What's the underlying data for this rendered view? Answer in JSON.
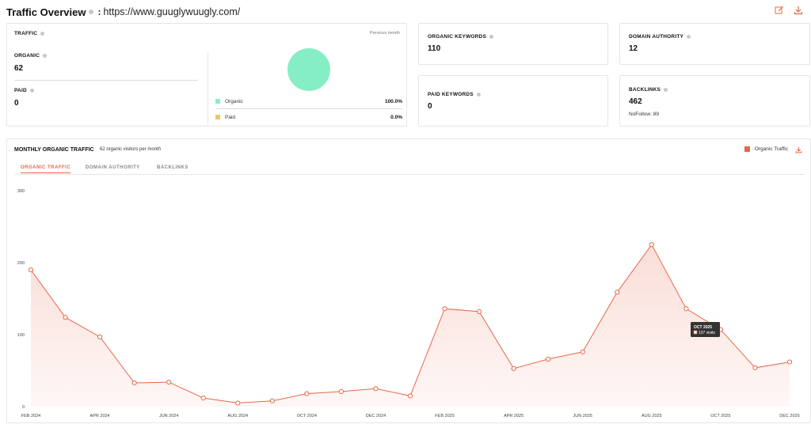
{
  "header": {
    "title": "Traffic Overview",
    "separator": ":",
    "url": "https://www.guuglywuugly.com/"
  },
  "traffic": {
    "label": "TRAFFIC",
    "period": "Previous month",
    "organic_label": "ORGANIC",
    "organic_value": "62",
    "paid_label": "PAID",
    "paid_value": "0",
    "legend": [
      {
        "name": "Organic",
        "pct": "100.0%",
        "color": "#86eec5"
      },
      {
        "name": "Paid",
        "pct": "0.0%",
        "color": "#f1c46b"
      }
    ]
  },
  "metrics": {
    "organic_keywords": {
      "label": "ORGANIC KEYWORDS",
      "value": "110"
    },
    "domain_authority": {
      "label": "DOMAIN AUTHORITY",
      "value": "12"
    },
    "paid_keywords": {
      "label": "PAID KEYWORDS",
      "value": "0"
    },
    "backlinks": {
      "label": "BACKLINKS",
      "value": "462",
      "nofollow": "NoFollow: 89"
    }
  },
  "chart_panel": {
    "title": "MONTHLY ORGANIC TRAFFIC",
    "subtitle": "62 organic visitors per month",
    "legend_label": "Organic Traffic",
    "tabs": [
      "ORGANIC TRAFFIC",
      "DOMAIN AUTHORITY",
      "BACKLINKS"
    ],
    "active_tab": 0,
    "tooltip": {
      "title": "OCT 2025",
      "value": "107 visits"
    }
  },
  "colors": {
    "accent": "#e8674a",
    "organic": "#86eec5",
    "paid": "#f1c46b"
  },
  "chart_data": {
    "type": "area",
    "title": "",
    "xlabel": "",
    "ylabel": "",
    "ylim": [
      0,
      300
    ],
    "yticks": [
      0,
      100,
      200,
      300
    ],
    "x": [
      "FEB 2024",
      "MAR 2024",
      "APR 2024",
      "MAY 2024",
      "JUN 2024",
      "JUL 2024",
      "AUG 2024",
      "SEP 2024",
      "OCT 2024",
      "NOV 2024",
      "DEC 2024",
      "JAN 2025",
      "FEB 2025",
      "MAR 2025",
      "APR 2025",
      "MAY 2025",
      "JUN 2025",
      "JUL 2025",
      "AUG 2025",
      "SEP 2025",
      "OCT 2025",
      "NOV 2025",
      "DEC 2025"
    ],
    "xtick_labels": [
      "FEB 2024",
      "APR 2024",
      "JUN 2024",
      "AUG 2024",
      "OCT 2024",
      "DEC 2024",
      "FEB 2025",
      "APR 2025",
      "JUN 2025",
      "AUG 2025",
      "OCT 2025",
      "DEC 2025"
    ],
    "series": [
      {
        "name": "Organic Traffic",
        "values": [
          190,
          124,
          97,
          33,
          34,
          12,
          5,
          8,
          18,
          21,
          25,
          15,
          136,
          132,
          53,
          66,
          76,
          159,
          225,
          136,
          107,
          54,
          62
        ]
      }
    ],
    "grid": false
  }
}
